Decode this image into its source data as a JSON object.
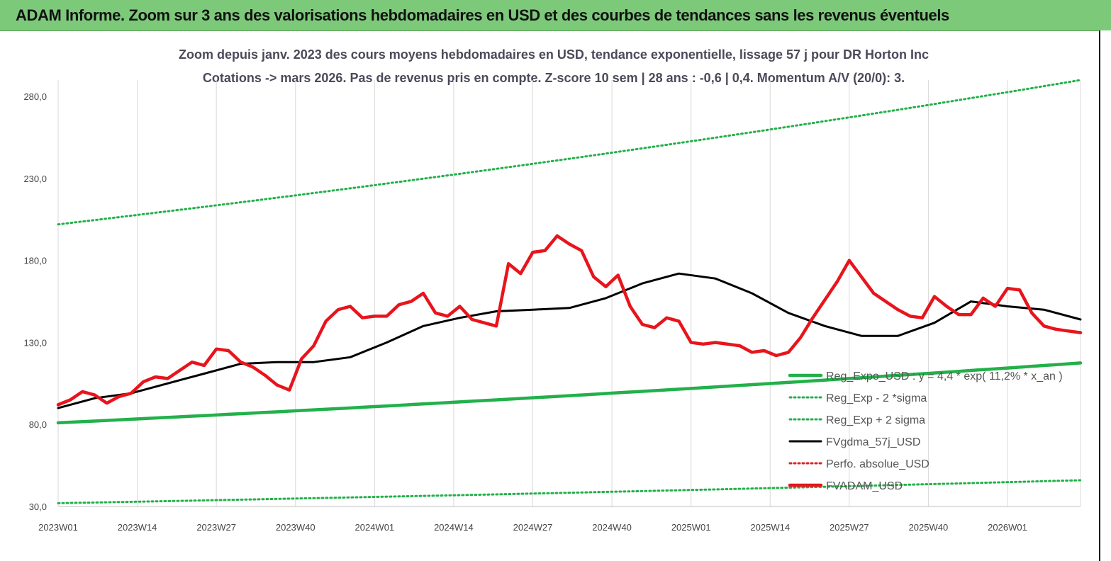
{
  "banner": {
    "title": "ADAM Informe. Zoom sur 3 ans des valorisations hebdomadaires en USD et des courbes de tendances sans les revenus éventuels",
    "background": "#7dc97a"
  },
  "chart_data": {
    "type": "line",
    "title_line1": "Zoom depuis janv. 2023 des cours moyens hebdomadaires en USD, tendance exponentielle, lissage 57 j pour DR Horton Inc",
    "title_line2": "Cotations -> mars 2026. Pas de revenus pris en compte. Z-score 10 sem | 28 ans : -0,6 | 0,4. Momentum A/V (20/0): 3.",
    "ylim": [
      30,
      290
    ],
    "y_ticks": [
      "30,0",
      "80,0",
      "130,0",
      "180,0",
      "230,0",
      "280,0"
    ],
    "x_ticks": [
      "2023W01",
      "2023W14",
      "2023W27",
      "2023W40",
      "2024W01",
      "2024W14",
      "2024W27",
      "2024W40",
      "2025W01",
      "2025W14",
      "2025W27",
      "2025W40",
      "2026W01"
    ],
    "x_week_range": [
      0,
      168
    ],
    "grid": "vertical",
    "legend_position": "bottom-right",
    "series": [
      {
        "name": "Reg_Expo_USD : y = 4,4 * exp( 11,2% * x_an )",
        "color": "#22b04a",
        "style": "solid-thick",
        "x": [
          0,
          168
        ],
        "y": [
          81,
          117.5
        ],
        "curve": "exponential"
      },
      {
        "name": "Reg_Exp - 2 *sigma",
        "color": "#22b04a",
        "style": "dotted",
        "x": [
          0,
          168
        ],
        "y": [
          32,
          46
        ],
        "curve": "exponential"
      },
      {
        "name": "Reg_Exp + 2 sigma",
        "color": "#22b04a",
        "style": "dotted",
        "x": [
          0,
          168
        ],
        "y": [
          202,
          290
        ],
        "curve": "exponential"
      },
      {
        "name": "FVgdma_57j_USD",
        "color": "#000000",
        "style": "solid",
        "x": [
          0,
          6,
          12,
          18,
          24,
          30,
          36,
          42,
          48,
          54,
          60,
          66,
          72,
          78,
          84,
          90,
          96,
          102,
          108,
          114,
          120,
          126,
          132,
          138,
          144,
          150,
          156,
          162,
          168
        ],
        "y": [
          90,
          96,
          99,
          105,
          111,
          117,
          118,
          118,
          121,
          130,
          140,
          145,
          149,
          150,
          151,
          157,
          166,
          172,
          169,
          160,
          148,
          140,
          134,
          134,
          142,
          155,
          152,
          150,
          144
        ]
      },
      {
        "name": "Perfo. absolue_USD",
        "color": "#e02020",
        "style": "dotted",
        "x": [],
        "y": []
      },
      {
        "name": "FVADAM_USD",
        "color": "#e8141c",
        "style": "solid-thick",
        "x": [
          0,
          2,
          4,
          6,
          8,
          10,
          12,
          14,
          16,
          18,
          20,
          22,
          24,
          26,
          28,
          30,
          32,
          34,
          36,
          38,
          40,
          42,
          44,
          46,
          48,
          50,
          52,
          54,
          56,
          58,
          60,
          62,
          64,
          66,
          68,
          70,
          72,
          74,
          76,
          78,
          80,
          82,
          84,
          86,
          88,
          90,
          92,
          94,
          96,
          98,
          100,
          102,
          104,
          106,
          108,
          110,
          112,
          114,
          116,
          118,
          120,
          122,
          124,
          126,
          128,
          130,
          132,
          134,
          136,
          138,
          140,
          142,
          144,
          146,
          148,
          150,
          152,
          154,
          156,
          158,
          160,
          162,
          164,
          166,
          168
        ],
        "y": [
          92,
          95,
          100,
          98,
          93,
          97,
          99,
          106,
          109,
          108,
          113,
          118,
          116,
          126,
          125,
          118,
          115,
          110,
          104,
          101,
          120,
          128,
          143,
          150,
          152,
          145,
          146,
          146,
          153,
          155,
          160,
          148,
          146,
          152,
          144,
          142,
          140,
          178,
          172,
          185,
          186,
          195,
          190,
          186,
          170,
          164,
          171,
          152,
          141,
          139,
          145,
          143,
          130,
          129,
          130,
          129,
          128,
          124,
          125,
          122,
          124,
          133,
          145,
          156,
          167,
          180,
          170,
          160,
          155,
          150,
          146,
          145,
          158,
          152,
          147,
          147,
          157,
          152,
          163,
          162,
          148,
          140,
          138,
          137,
          136
        ]
      }
    ]
  }
}
